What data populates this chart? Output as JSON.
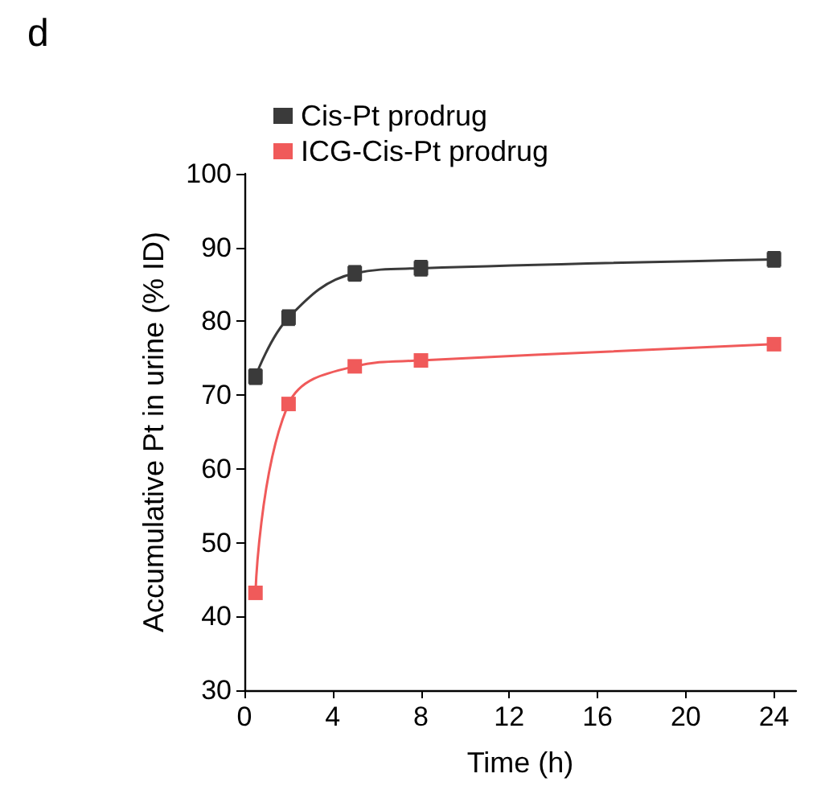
{
  "chart_data": {
    "type": "line",
    "title": "d",
    "xlabel": "Time (h)",
    "ylabel": "Accumulative Pt in urine (% ID)",
    "x": [
      0.5,
      2,
      5,
      8,
      24
    ],
    "series": [
      {
        "name": "Cis-Pt prodrug",
        "color": "#3a3a3a",
        "values": [
          72.5,
          80.5,
          86.5,
          87.2,
          88.4
        ],
        "errors": [
          1,
          1,
          1,
          1,
          1
        ]
      },
      {
        "name": "ICG-Cis-Pt prodrug",
        "color": "#f05a5a",
        "values": [
          43.2,
          68.8,
          73.9,
          74.7,
          76.9
        ]
      }
    ],
    "xlim": [
      0,
      25
    ],
    "xticks": [
      0,
      4,
      8,
      12,
      16,
      20,
      24
    ],
    "ylim": [
      30,
      100
    ],
    "yticks": [
      30,
      40,
      50,
      60,
      70,
      80,
      90,
      100
    ],
    "marker": "square",
    "grid": false,
    "legend": "top left"
  }
}
